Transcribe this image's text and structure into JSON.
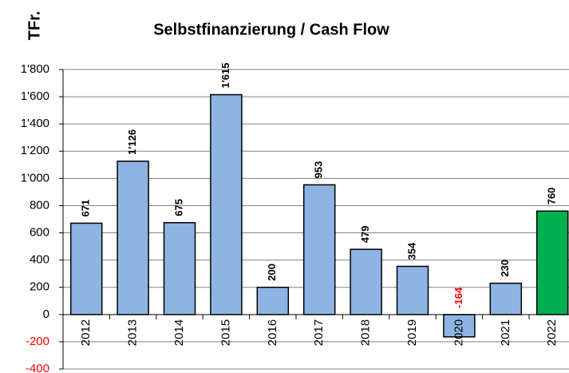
{
  "chart_data": {
    "type": "bar",
    "title": "Selbstfinanzierung / Cash Flow",
    "y_label": "TFr.",
    "categories": [
      "2012",
      "2013",
      "2014",
      "2015",
      "2016",
      "2017",
      "2018",
      "2019",
      "2020",
      "2021",
      "2022"
    ],
    "values": [
      671,
      1126,
      675,
      1615,
      200,
      953,
      479,
      354,
      -164,
      230,
      760
    ],
    "value_labels": [
      "671",
      "1'126",
      "675",
      "1'615",
      "200",
      "953",
      "479",
      "354",
      "-164",
      "230",
      "760"
    ],
    "colors": [
      "#8db4e2",
      "#8db4e2",
      "#8db4e2",
      "#8db4e2",
      "#8db4e2",
      "#8db4e2",
      "#8db4e2",
      "#8db4e2",
      "#8db4e2",
      "#8db4e2",
      "#00b050"
    ],
    "negative_color": "#ff0000",
    "ylim": [
      -400,
      1800
    ],
    "yticks": [
      -400,
      -200,
      0,
      200,
      400,
      600,
      800,
      {
        "value": 1000,
        "label": "1'000"
      },
      {
        "value": 1200,
        "label": "1'200"
      },
      {
        "value": 1400,
        "label": "1'400"
      },
      {
        "value": 1600,
        "label": "1'600"
      },
      {
        "value": 1800,
        "label": "1'800"
      }
    ],
    "grid": true
  }
}
